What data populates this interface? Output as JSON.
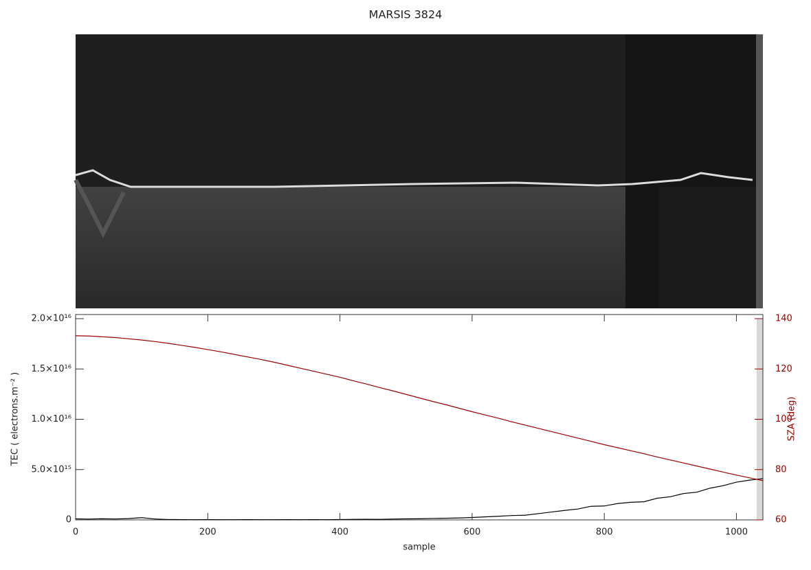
{
  "chart_data": {
    "type": "line",
    "title": "MARSIS 3824",
    "xlabel": "sample",
    "ylabel": "TEC ( electrons.m⁻² )",
    "y2label": "SZA (deg)",
    "x": [
      0,
      20,
      40,
      60,
      80,
      100,
      120,
      140,
      160,
      180,
      200,
      220,
      240,
      260,
      280,
      300,
      320,
      340,
      360,
      380,
      400,
      420,
      440,
      460,
      480,
      500,
      520,
      540,
      560,
      580,
      600,
      620,
      640,
      660,
      680,
      700,
      720,
      740,
      760,
      780,
      800,
      820,
      840,
      860,
      880,
      900,
      920,
      940,
      960,
      980,
      1000,
      1020,
      1040
    ],
    "series": [
      {
        "color": "#000000",
        "values": [
          100000000000000.0,
          80000000000000.0,
          110000000000000.0,
          90000000000000.0,
          130000000000000.0,
          220000000000000.0,
          90000000000000.0,
          40000000000000.0,
          30000000000000.0,
          20000000000000.0,
          30000000000000.0,
          20000000000000.0,
          20000000000000.0,
          30000000000000.0,
          20000000000000.0,
          20000000000000.0,
          30000000000000.0,
          20000000000000.0,
          30000000000000.0,
          20000000000000.0,
          40000000000000.0,
          50000000000000.0,
          60000000000000.0,
          50000000000000.0,
          80000000000000.0,
          100000000000000.0,
          110000000000000.0,
          140000000000000.0,
          160000000000000.0,
          190000000000000.0,
          240000000000000.0,
          300000000000000.0,
          360000000000000.0,
          430000000000000.0,
          460000000000000.0,
          620000000000000.0,
          780000000000000.0,
          940000000000000.0,
          1080000000000000.0,
          1350000000000000.0,
          1380000000000000.0,
          1620000000000000.0,
          1750000000000000.0,
          1800000000000000.0,
          2150000000000000.0,
          2300000000000000.0,
          2620000000000000.0,
          2750000000000000.0,
          3150000000000000.0,
          3400000000000000.0,
          3750000000000000.0,
          3950000000000000.0,
          4100000000000000.0
        ]
      },
      {
        "color": "#990000",
        "axis": "y2",
        "values": [
          133.2,
          133.1,
          132.8,
          132.5,
          132,
          131.5,
          130.9,
          130.2,
          129.4,
          128.6,
          127.7,
          126.8,
          125.8,
          124.8,
          123.8,
          122.7,
          121.5,
          120.3,
          119.1,
          117.9,
          116.7,
          115.3,
          114,
          112.6,
          111.3,
          109.9,
          108.5,
          107.1,
          105.8,
          104.4,
          103,
          101.7,
          100.4,
          99,
          97.7,
          96.4,
          95.1,
          93.8,
          92.5,
          91.2,
          89.9,
          88.7,
          87.5,
          86.3,
          85,
          83.8,
          82.6,
          81.4,
          80.2,
          79,
          77.8,
          76.7,
          75.6
        ]
      }
    ],
    "xlim": [
      0,
      1040
    ],
    "xticks": [
      0,
      200,
      400,
      600,
      800,
      1000
    ],
    "ylim": [
      0,
      2e+16
    ],
    "yticks": [
      0,
      {
        "value": 5000000000000000.0,
        "label": "5.0×10¹⁵"
      },
      {
        "value": 1e+16,
        "label": "1.0×10¹⁶"
      },
      {
        "value": 1.5e+16,
        "label": "1.5×10¹⁶"
      },
      {
        "value": 2e+16,
        "label": "2.0×10¹⁶"
      }
    ],
    "y2lim": [
      60,
      140
    ],
    "y2ticks": [
      60,
      80,
      100,
      120,
      140
    ]
  }
}
